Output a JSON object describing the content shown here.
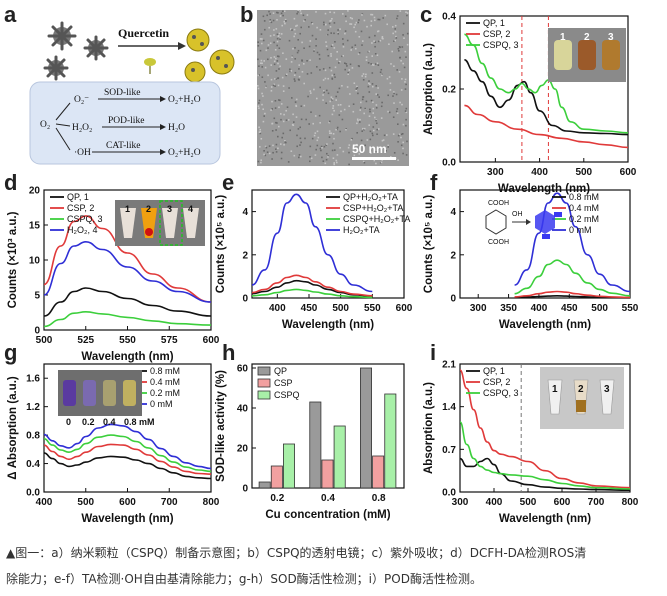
{
  "caption": {
    "line1": "▲图一：a）纳米颗粒（CSPQ）制备示意图；b）CSPQ的透射电镜；c）紫外吸收；d）DCFH-DA检测ROS清",
    "line2": "除能力；e-f）TA检测·OH自由基清除能力；g-h）SOD酶活性检测；i）POD酶活性检测。"
  },
  "panel_a": {
    "label": "a",
    "quercetin": "Quercetin",
    "o2": "O₂",
    "o2_radical": "O₂⁻",
    "h2o2": "H₂O₂",
    "oh": "·OH",
    "sod": "SOD-like",
    "pod": "POD-like",
    "cat": "CAT-like",
    "p_sod": "O₂+H₂O",
    "p_pod": "H₂O",
    "p_cat": "O₂+H₂O"
  },
  "panel_b": {
    "label": "b",
    "scale": "50 nm"
  },
  "panel_c": {
    "label": "c",
    "tube_labels": [
      "1",
      "2",
      "3"
    ]
  },
  "panel_d": {
    "label": "d",
    "tube_labels": [
      "1",
      "2",
      "3",
      "4"
    ]
  },
  "panel_f": {
    "label": "f",
    "mol_cooh1": "COOH",
    "mol_cooh2": "COOH",
    "mol_oh": "OH"
  },
  "panel_g": {
    "label": "g",
    "tube_labels": [
      "0",
      "0.2",
      "0.4",
      "0.8 mM"
    ]
  },
  "panel_i": {
    "label": "i",
    "tube_labels": [
      "1",
      "2",
      "3"
    ]
  },
  "chart_data": [
    {
      "panel": "c",
      "type": "line",
      "xlabel": "Wavelength (nm)",
      "ylabel": "Absorption (a.u.)",
      "xlim": [
        220,
        600
      ],
      "ylim": [
        0,
        0.4
      ],
      "xticks": [
        300,
        400,
        500,
        600
      ],
      "yticks": [
        0.0,
        0.2,
        0.4
      ],
      "ytick_labels": [
        "0.0",
        "0.2",
        "0.4"
      ],
      "legend": "top-left",
      "vlines": [
        360,
        420
      ],
      "series": [
        {
          "name": "QP, 1",
          "color": "#111111",
          "x": [
            230,
            250,
            270,
            290,
            310,
            330,
            350,
            365,
            380,
            400,
            430,
            460,
            500,
            550,
            600
          ],
          "y": [
            0.28,
            0.25,
            0.22,
            0.18,
            0.15,
            0.17,
            0.21,
            0.22,
            0.19,
            0.14,
            0.1,
            0.085,
            0.08,
            0.078,
            0.075
          ]
        },
        {
          "name": "CSP, 2",
          "color": "#e03a3a",
          "x": [
            230,
            260,
            300,
            350,
            400,
            450,
            500,
            550,
            600
          ],
          "y": [
            0.155,
            0.13,
            0.11,
            0.09,
            0.075,
            0.065,
            0.055,
            0.047,
            0.04
          ]
        },
        {
          "name": "CSPQ, 3",
          "color": "#3ccf3c",
          "x": [
            230,
            250,
            270,
            290,
            310,
            330,
            345,
            360,
            375,
            390,
            405,
            420,
            435,
            450,
            470,
            500,
            550,
            600
          ],
          "y": [
            0.35,
            0.32,
            0.27,
            0.23,
            0.2,
            0.19,
            0.2,
            0.215,
            0.2,
            0.19,
            0.21,
            0.225,
            0.2,
            0.15,
            0.11,
            0.09,
            0.085,
            0.08
          ]
        }
      ]
    },
    {
      "panel": "d",
      "type": "line",
      "xlabel": "Wavelength (nm)",
      "ylabel": "Counts (×10³ a.u.)",
      "xlim": [
        500,
        600
      ],
      "ylim": [
        0,
        20
      ],
      "xticks": [
        500,
        525,
        550,
        575,
        600
      ],
      "yticks": [
        0,
        5,
        10,
        15,
        20
      ],
      "legend": "top-left",
      "series": [
        {
          "name": "QP, 1",
          "color": "#111111",
          "x": [
            500,
            510,
            518,
            525,
            535,
            550,
            565,
            580,
            600
          ],
          "y": [
            2,
            4,
            5.5,
            6,
            5.5,
            4.5,
            3.5,
            2.7,
            2
          ]
        },
        {
          "name": "CSP, 2",
          "color": "#e03a3a",
          "x": [
            500,
            510,
            518,
            525,
            535,
            550,
            565,
            580,
            600
          ],
          "y": [
            6.5,
            12,
            15.5,
            16.3,
            14.5,
            11,
            8,
            6,
            4
          ]
        },
        {
          "name": "CSPQ, 3",
          "color": "#3ccf3c",
          "x": [
            500,
            510,
            518,
            525,
            535,
            550,
            565,
            580,
            600
          ],
          "y": [
            0.5,
            1.5,
            2.4,
            2.6,
            2.3,
            1.8,
            1.3,
            0.9,
            0.7
          ]
        },
        {
          "name": "H₂O₂, 4",
          "color": "#2f2fd6",
          "x": [
            500,
            510,
            518,
            525,
            535,
            550,
            565,
            580,
            600
          ],
          "y": [
            5,
            9.5,
            12,
            12.6,
            11.5,
            9,
            7,
            5.5,
            4
          ]
        }
      ]
    },
    {
      "panel": "e",
      "type": "line",
      "xlabel": "Wavelength (nm)",
      "ylabel": "Counts (×10⁵ a.u.)",
      "xlim": [
        360,
        600
      ],
      "ylim": [
        0,
        5
      ],
      "xticks": [
        400,
        450,
        500,
        550,
        600
      ],
      "yticks": [
        0,
        2,
        4
      ],
      "legend": "top-right",
      "series": [
        {
          "name": "QP+H₂O₂+TA",
          "color": "#111111",
          "x": [
            360,
            380,
            400,
            415,
            430,
            445,
            460,
            480,
            500,
            520,
            550
          ],
          "y": [
            0.2,
            0.3,
            0.5,
            0.7,
            0.8,
            0.75,
            0.6,
            0.4,
            0.25,
            0.15,
            0.08
          ]
        },
        {
          "name": "CSP+H₂O₂+TA",
          "color": "#e03a3a",
          "x": [
            360,
            380,
            400,
            415,
            430,
            445,
            460,
            480,
            500,
            520,
            550
          ],
          "y": [
            0.25,
            0.4,
            0.7,
            0.95,
            1.05,
            0.95,
            0.75,
            0.5,
            0.3,
            0.18,
            0.1
          ]
        },
        {
          "name": "CSPQ+H₂O₂+TA",
          "color": "#3ccf3c",
          "x": [
            360,
            380,
            400,
            415,
            430,
            445,
            460,
            480,
            500,
            520,
            550
          ],
          "y": [
            0.1,
            0.15,
            0.25,
            0.35,
            0.4,
            0.35,
            0.28,
            0.18,
            0.1,
            0.06,
            0.03
          ]
        },
        {
          "name": "H₂O₂+TA",
          "color": "#2f2fd6",
          "x": [
            360,
            380,
            400,
            415,
            430,
            445,
            460,
            480,
            500,
            520,
            550
          ],
          "y": [
            0.6,
            1.3,
            3.0,
            4.4,
            4.8,
            4.4,
            3.3,
            2.0,
            1.1,
            0.6,
            0.3
          ]
        }
      ]
    },
    {
      "panel": "f",
      "type": "line",
      "xlabel": "Wavelength (nm)",
      "ylabel": "Counts (×10⁵ a.u.)",
      "xlim": [
        270,
        550
      ],
      "ylim": [
        0,
        5
      ],
      "xticks": [
        300,
        350,
        400,
        450,
        500,
        550
      ],
      "yticks": [
        0,
        2,
        4
      ],
      "legend": "top-right",
      "series": [
        {
          "name": "0.8 mM",
          "color": "#111111",
          "x": [
            360,
            380,
            400,
            415,
            430,
            445,
            460,
            480,
            500,
            520,
            550
          ],
          "y": [
            0.02,
            0.04,
            0.07,
            0.09,
            0.1,
            0.09,
            0.07,
            0.05,
            0.03,
            0.02,
            0.01
          ]
        },
        {
          "name": "0.4 mM",
          "color": "#e03a3a",
          "x": [
            360,
            380,
            400,
            415,
            430,
            445,
            460,
            480,
            500,
            520,
            550
          ],
          "y": [
            0.05,
            0.1,
            0.2,
            0.27,
            0.3,
            0.27,
            0.2,
            0.13,
            0.08,
            0.05,
            0.03
          ]
        },
        {
          "name": "0.2 mM",
          "color": "#3ccf3c",
          "x": [
            360,
            380,
            400,
            415,
            430,
            445,
            460,
            480,
            500,
            520,
            550
          ],
          "y": [
            0.2,
            0.45,
            1.0,
            1.55,
            1.75,
            1.55,
            1.15,
            0.7,
            0.4,
            0.22,
            0.1
          ]
        },
        {
          "name": "0 mM",
          "color": "#2f2fd6",
          "x": [
            360,
            380,
            400,
            415,
            430,
            445,
            460,
            480,
            500,
            520,
            550
          ],
          "y": [
            0.6,
            1.3,
            3.0,
            4.4,
            4.85,
            4.4,
            3.3,
            2.0,
            1.1,
            0.6,
            0.3
          ]
        }
      ]
    },
    {
      "panel": "g",
      "type": "line",
      "xlabel": "Wavelength (nm)",
      "ylabel": "Δ Absorption (a.u.)",
      "xlim": [
        400,
        800
      ],
      "ylim": [
        0,
        1.8
      ],
      "xticks": [
        400,
        500,
        600,
        700,
        800
      ],
      "yticks": [
        0.0,
        0.4,
        0.8,
        1.2,
        1.6
      ],
      "ytick_labels": [
        "0.0",
        "0.4",
        "0.8",
        "1.2",
        "1.6"
      ],
      "legend": "top-right",
      "series": [
        {
          "name": "0.8 mM",
          "color": "#111111",
          "x": [
            400,
            420,
            440,
            460,
            480,
            500,
            530,
            560,
            590,
            620,
            650,
            680,
            710,
            740,
            770,
            800
          ],
          "y": [
            0.55,
            0.47,
            0.4,
            0.36,
            0.38,
            0.42,
            0.48,
            0.5,
            0.49,
            0.45,
            0.4,
            0.33,
            0.27,
            0.22,
            0.2,
            0.19
          ]
        },
        {
          "name": "0.4 mM",
          "color": "#e03a3a",
          "x": [
            400,
            420,
            440,
            460,
            480,
            500,
            530,
            560,
            590,
            620,
            650,
            680,
            710,
            740,
            770,
            800
          ],
          "y": [
            0.66,
            0.57,
            0.5,
            0.46,
            0.5,
            0.56,
            0.64,
            0.67,
            0.66,
            0.6,
            0.52,
            0.43,
            0.35,
            0.29,
            0.26,
            0.25
          ]
        },
        {
          "name": "0.2 mM",
          "color": "#3ccf3c",
          "x": [
            400,
            420,
            440,
            460,
            480,
            500,
            530,
            560,
            590,
            620,
            650,
            680,
            710,
            740,
            770,
            800
          ],
          "y": [
            0.75,
            0.66,
            0.59,
            0.56,
            0.6,
            0.68,
            0.77,
            0.8,
            0.78,
            0.71,
            0.62,
            0.51,
            0.42,
            0.35,
            0.31,
            0.29
          ]
        },
        {
          "name": "0 mM",
          "color": "#2f2fd6",
          "x": [
            400,
            420,
            440,
            460,
            480,
            500,
            530,
            560,
            590,
            620,
            650,
            680,
            710,
            740,
            770,
            800
          ],
          "y": [
            0.81,
            0.72,
            0.65,
            0.62,
            0.68,
            0.78,
            0.9,
            0.95,
            0.93,
            0.85,
            0.74,
            0.61,
            0.5,
            0.41,
            0.36,
            0.33
          ]
        }
      ]
    },
    {
      "panel": "h",
      "type": "bar",
      "xlabel": "Cu concentration (mM)",
      "ylabel": "SOD-like activity (%)",
      "categories": [
        "0.2",
        "0.4",
        "0.8"
      ],
      "ylim": [
        0,
        62
      ],
      "yticks": [
        0,
        20,
        40,
        60
      ],
      "legend": "top-left",
      "series": [
        {
          "name": "QP",
          "color": "#9a9a9a",
          "values": [
            3,
            43,
            60
          ]
        },
        {
          "name": "CSP",
          "color": "#f2a0a0",
          "values": [
            11,
            14,
            16
          ]
        },
        {
          "name": "CSPQ",
          "color": "#a8f0a8",
          "values": [
            22,
            31,
            47
          ]
        }
      ]
    },
    {
      "panel": "i",
      "type": "line",
      "xlabel": "Wavelength (nm)",
      "ylabel": "Absorption (a.u.)",
      "xlim": [
        300,
        800
      ],
      "ylim": [
        0,
        2.1
      ],
      "xticks": [
        300,
        400,
        500,
        600,
        700,
        800
      ],
      "yticks": [
        0.0,
        0.7,
        1.4,
        2.1
      ],
      "ytick_labels": [
        "0.0",
        "0.7",
        "1.4",
        "2.1"
      ],
      "legend": "top-left",
      "vlines": [
        480
      ],
      "series": [
        {
          "name": "QP, 1",
          "color": "#111111",
          "x": [
            300,
            320,
            340,
            360,
            380,
            400,
            420,
            450,
            500,
            550,
            600,
            650,
            700,
            800
          ],
          "y": [
            0.55,
            0.42,
            0.42,
            0.5,
            0.55,
            0.45,
            0.3,
            0.18,
            0.12,
            0.08,
            0.06,
            0.05,
            0.04,
            0.03
          ]
        },
        {
          "name": "CSP, 2",
          "color": "#e03a3a",
          "x": [
            300,
            320,
            340,
            360,
            380,
            400,
            420,
            450,
            500,
            550,
            600,
            650,
            700,
            800
          ],
          "y": [
            2.0,
            1.7,
            1.35,
            1.05,
            0.82,
            0.68,
            0.62,
            0.58,
            0.5,
            0.35,
            0.22,
            0.15,
            0.1,
            0.07
          ]
        },
        {
          "name": "CSPQ, 3",
          "color": "#3ccf3c",
          "x": [
            300,
            320,
            340,
            360,
            380,
            400,
            420,
            450,
            500,
            550,
            600,
            650,
            700,
            800
          ],
          "y": [
            1.15,
            0.78,
            0.55,
            0.42,
            0.36,
            0.32,
            0.3,
            0.28,
            0.26,
            0.2,
            0.14,
            0.1,
            0.07,
            0.05
          ]
        }
      ]
    }
  ]
}
